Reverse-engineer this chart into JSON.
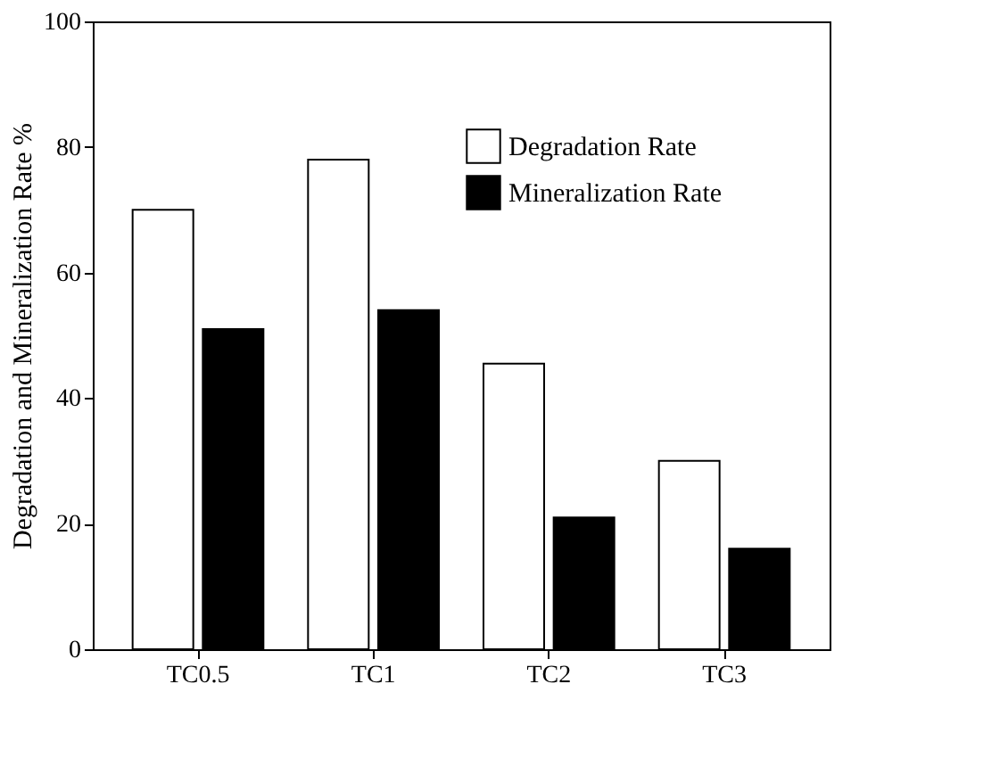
{
  "chart_data": {
    "type": "bar",
    "ylabel": "Degradation and Mineralization Rate %",
    "categories": [
      "TC0.5",
      "TC1",
      "TC2",
      "TC3"
    ],
    "series": [
      {
        "name": "Degradation Rate",
        "color": "#ffffff",
        "values": [
          70,
          78,
          45.5,
          30
        ]
      },
      {
        "name": "Mineralization Rate",
        "color": "#000000",
        "values": [
          51,
          54,
          21,
          16
        ]
      }
    ],
    "ylim": [
      0,
      100
    ],
    "yticks": [
      0,
      20,
      40,
      60,
      80,
      100
    ],
    "grid": false,
    "legend": "top right"
  }
}
